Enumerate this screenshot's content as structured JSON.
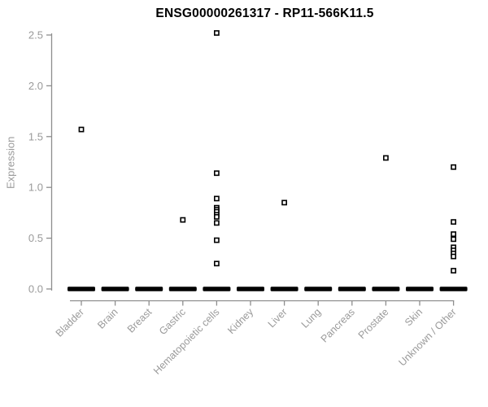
{
  "chart_data": {
    "type": "scatter",
    "title": "ENSG00000261317 - RP11-566K11.5",
    "ylabel": "Expression",
    "xlabel": "",
    "ylim": [
      0,
      2.5
    ],
    "yticks": [
      "0.0",
      "0.5",
      "1.0",
      "1.5",
      "2.0",
      "2.5"
    ],
    "grid": false,
    "legend": false,
    "marker": "open-square",
    "categories": [
      "Bladder",
      "Brain",
      "Breast",
      "Gastric",
      "Hematopoietic cells",
      "Kidney",
      "Liver",
      "Lung",
      "Pancreas",
      "Prostate",
      "Skin",
      "Unknown / Other"
    ],
    "series": [
      {
        "name": "Bladder",
        "has_zero_cluster": true,
        "values_above_zero": [
          1.57
        ]
      },
      {
        "name": "Brain",
        "has_zero_cluster": true,
        "values_above_zero": []
      },
      {
        "name": "Breast",
        "has_zero_cluster": true,
        "values_above_zero": []
      },
      {
        "name": "Gastric",
        "has_zero_cluster": true,
        "values_above_zero": [
          0.68
        ]
      },
      {
        "name": "Hematopoietic cells",
        "has_zero_cluster": true,
        "values_above_zero": [
          2.52,
          1.14,
          0.89,
          0.8,
          0.78,
          0.76,
          0.73,
          0.71,
          0.65,
          0.48,
          0.25
        ]
      },
      {
        "name": "Kidney",
        "has_zero_cluster": true,
        "values_above_zero": []
      },
      {
        "name": "Liver",
        "has_zero_cluster": true,
        "values_above_zero": [
          0.85
        ]
      },
      {
        "name": "Lung",
        "has_zero_cluster": true,
        "values_above_zero": []
      },
      {
        "name": "Pancreas",
        "has_zero_cluster": true,
        "values_above_zero": []
      },
      {
        "name": "Prostate",
        "has_zero_cluster": true,
        "values_above_zero": [
          1.29
        ]
      },
      {
        "name": "Skin",
        "has_zero_cluster": true,
        "values_above_zero": []
      },
      {
        "name": "Unknown / Other",
        "has_zero_cluster": true,
        "values_above_zero": [
          1.2,
          0.66,
          0.54,
          0.49,
          0.41,
          0.38,
          0.35,
          0.32,
          0.18
        ]
      }
    ],
    "zero_cluster_note": "dense overlapping points at 0.0 rendered as a thick black dash in every category",
    "colors": {
      "marker": "#000000",
      "axis_line": "#8e8e8e",
      "axis_text": "#9a9a9a",
      "title_text": "#000000",
      "background": "#ffffff"
    }
  }
}
